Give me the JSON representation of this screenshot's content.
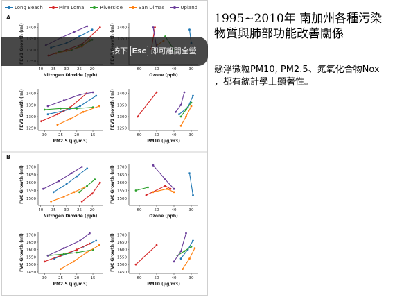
{
  "slide": {
    "title": "1995~2010年 南加州各種污染物質與肺部功能改善關係",
    "body": "懸浮微粒PM10, PM2.5、氮氧化合物Nox ，都有統計學上顯著性。"
  },
  "overlay": {
    "text_before": "按下",
    "key": "Esc",
    "text_after": "即可離開全螢"
  },
  "legend": [
    {
      "name": "Long Beach",
      "color": "#1f77b4"
    },
    {
      "name": "Mira Loma",
      "color": "#d62728"
    },
    {
      "name": "Riverside",
      "color": "#2ca02c"
    },
    {
      "name": "San Dimas",
      "color": "#ff7f0e"
    },
    {
      "name": "Upland",
      "color": "#6a3d9a"
    }
  ],
  "sections": [
    {
      "label": "A",
      "ylabel_prefix": "FEV",
      "ylabel_suffix": " Growth (ml)",
      "yticks": [
        "1400",
        "1350",
        "1300",
        "1250"
      ]
    },
    {
      "label": "B",
      "ylabel_prefix": "FVC",
      "ylabel_suffix": " Growth (ml)",
      "yticks": [
        "1700",
        "1650",
        "1600",
        "1550",
        "1500",
        "1450"
      ]
    }
  ],
  "chart_data": [
    {
      "type": "scatter",
      "panel": "A-NO2",
      "xlabel": "Nitrogen Dioxide (ppb)",
      "ylabel": "FEV1 Growth (ml)",
      "xticks": [
        "40",
        "35",
        "30",
        "25",
        "20"
      ],
      "yticks": [
        "1400",
        "1350",
        "1300",
        "1250"
      ],
      "xlim": [
        41,
        16
      ],
      "ylim": [
        1235,
        1420
      ],
      "series": [
        {
          "name": "Long Beach",
          "points": [
            [
              36,
              1310
            ],
            [
              30,
              1330
            ],
            [
              25,
              1360
            ],
            [
              20,
              1390
            ]
          ]
        },
        {
          "name": "Mira Loma",
          "points": [
            [
              37,
              1275
            ],
            [
              30,
              1300
            ],
            [
              24,
              1325
            ],
            [
              17,
              1400
            ]
          ]
        },
        {
          "name": "Riverside",
          "points": [
            [
              33,
              1290
            ],
            [
              28,
              1300
            ],
            [
              24,
              1320
            ],
            [
              20,
              1345
            ]
          ]
        },
        {
          "name": "San Dimas",
          "points": [
            [
              34,
              1285
            ],
            [
              30,
              1295
            ],
            [
              24,
              1315
            ],
            [
              21,
              1345
            ]
          ]
        },
        {
          "name": "Upland",
          "points": [
            [
              38,
              1320
            ],
            [
              32,
              1355
            ],
            [
              27,
              1380
            ],
            [
              22,
              1405
            ]
          ]
        }
      ]
    },
    {
      "type": "scatter",
      "panel": "A-O3",
      "xlabel": "Ozone (ppb)",
      "ylabel": "FEV1 Growth (ml)",
      "xticks": [
        "60",
        "50",
        "40",
        "30"
      ],
      "yticks": [
        "1400",
        "1350"
      ],
      "xlim": [
        66,
        26
      ],
      "ylim": [
        1235,
        1420
      ],
      "series": [
        {
          "name": "Long Beach",
          "points": [
            [
              31,
              1390
            ],
            [
              30,
              1330
            ]
          ]
        },
        {
          "name": "Mira Loma",
          "points": [
            [
              53,
              1305
            ],
            [
              51,
              1400
            ]
          ]
        },
        {
          "name": "Riverside",
          "points": [
            [
              45,
              1360
            ],
            [
              40,
              1300
            ]
          ]
        },
        {
          "name": "San Dimas",
          "points": [
            [
              50,
              1320
            ],
            [
              46,
              1340
            ]
          ]
        },
        {
          "name": "Upland",
          "points": [
            [
              52,
              1400
            ],
            [
              50,
              1310
            ]
          ]
        }
      ]
    },
    {
      "type": "scatter",
      "panel": "A-PM2.5",
      "xlabel": "PM2.5 (µg/m3)",
      "ylabel": "FEV1 Growth (ml)",
      "xticks": [
        "30",
        "25",
        "20",
        "15"
      ],
      "yticks": [
        "1400",
        "1350",
        "1300",
        "1250"
      ],
      "xlim": [
        32,
        12
      ],
      "ylim": [
        1240,
        1420
      ],
      "series": [
        {
          "name": "Long Beach",
          "points": [
            [
              29,
              1310
            ],
            [
              24,
              1325
            ],
            [
              19,
              1345
            ],
            [
              14,
              1390
            ]
          ]
        },
        {
          "name": "Mira Loma",
          "points": [
            [
              31,
              1280
            ],
            [
              26,
              1310
            ],
            [
              22,
              1340
            ],
            [
              17,
              1400
            ]
          ]
        },
        {
          "name": "Riverside",
          "points": [
            [
              30,
              1330
            ],
            [
              25,
              1335
            ],
            [
              20,
              1335
            ],
            [
              15,
              1340
            ]
          ]
        },
        {
          "name": "San Dimas",
          "points": [
            [
              26,
              1265
            ],
            [
              22,
              1290
            ],
            [
              18,
              1320
            ],
            [
              13,
              1345
            ]
          ]
        },
        {
          "name": "Upland",
          "points": [
            [
              29,
              1345
            ],
            [
              24,
              1370
            ],
            [
              19,
              1395
            ],
            [
              15,
              1405
            ]
          ]
        }
      ]
    },
    {
      "type": "scatter",
      "panel": "A-PM10",
      "xlabel": "PM10 (µg/m3)",
      "ylabel": "FEV1 Growth (ml)",
      "xticks": [
        "60",
        "50",
        "40",
        "30"
      ],
      "yticks": [
        "1400",
        "1350",
        "1300",
        "1250"
      ],
      "xlim": [
        66,
        26
      ],
      "ylim": [
        1240,
        1420
      ],
      "series": [
        {
          "name": "Long Beach",
          "points": [
            [
              37,
              1310
            ],
            [
              32,
              1340
            ],
            [
              29,
              1390
            ]
          ]
        },
        {
          "name": "Mira Loma",
          "points": [
            [
              61,
              1300
            ],
            [
              50,
              1405
            ]
          ]
        },
        {
          "name": "Riverside",
          "points": [
            [
              36,
              1300
            ],
            [
              33,
              1330
            ],
            [
              30,
              1360
            ]
          ]
        },
        {
          "name": "San Dimas",
          "points": [
            [
              36,
              1260
            ],
            [
              33,
              1300
            ],
            [
              30,
              1345
            ]
          ]
        },
        {
          "name": "Upland",
          "points": [
            [
              39,
              1320
            ],
            [
              36,
              1350
            ],
            [
              34,
              1405
            ]
          ]
        }
      ]
    },
    {
      "type": "scatter",
      "panel": "B-NO2",
      "xlabel": "Nitrogen Dioxide (ppb)",
      "ylabel": "FVC Growth (ml)",
      "xticks": [
        "40",
        "35",
        "30",
        "25",
        "20"
      ],
      "yticks": [
        "1700",
        "1650",
        "1600",
        "1550",
        "1500",
        "1450"
      ],
      "xlim": [
        41,
        16
      ],
      "ylim": [
        1455,
        1720
      ],
      "series": [
        {
          "name": "Long Beach",
          "points": [
            [
              35,
              1540
            ],
            [
              30,
              1590
            ],
            [
              26,
              1640
            ],
            [
              22,
              1690
            ]
          ]
        },
        {
          "name": "Mira Loma",
          "points": [
            [
              24,
              1480
            ],
            [
              20,
              1530
            ],
            [
              17,
              1600
            ]
          ]
        },
        {
          "name": "Riverside",
          "points": [
            [
              25,
              1540
            ],
            [
              22,
              1580
            ],
            [
              19,
              1620
            ]
          ]
        },
        {
          "name": "San Dimas",
          "points": [
            [
              36,
              1480
            ],
            [
              31,
              1510
            ],
            [
              27,
              1540
            ],
            [
              23,
              1570
            ]
          ]
        },
        {
          "name": "Upland",
          "points": [
            [
              39,
              1560
            ],
            [
              33,
              1610
            ],
            [
              28,
              1660
            ],
            [
              24,
              1700
            ]
          ]
        }
      ]
    },
    {
      "type": "scatter",
      "panel": "B-O3",
      "xlabel": "Ozone (ppb)",
      "ylabel": "FVC Growth (ml)",
      "xticks": [
        "60",
        "50",
        "40",
        "30"
      ],
      "yticks": [
        "1700",
        "1650",
        "1600",
        "1550",
        "1500"
      ],
      "xlim": [
        66,
        26
      ],
      "ylim": [
        1455,
        1720
      ],
      "series": [
        {
          "name": "Long Beach",
          "points": [
            [
              31,
              1660
            ],
            [
              29,
              1520
            ]
          ]
        },
        {
          "name": "Mira Loma",
          "points": [
            [
              56,
              1520
            ],
            [
              45,
              1580
            ],
            [
              42,
              1560
            ]
          ]
        },
        {
          "name": "Riverside",
          "points": [
            [
              62,
              1550
            ],
            [
              55,
              1570
            ]
          ]
        },
        {
          "name": "San Dimas",
          "points": [
            [
              52,
              1540
            ],
            [
              44,
              1560
            ],
            [
              40,
              1540
            ]
          ]
        },
        {
          "name": "Upland",
          "points": [
            [
              52,
              1710
            ],
            [
              45,
              1620
            ],
            [
              40,
              1560
            ]
          ]
        }
      ]
    },
    {
      "type": "scatter",
      "panel": "B-PM2.5",
      "xlabel": "PM2.5 (µg/m3)",
      "ylabel": "FVC Growth (ml)",
      "xticks": [
        "30",
        "25",
        "20",
        "15"
      ],
      "yticks": [
        "1700",
        "1650",
        "1600",
        "1550",
        "1500",
        "1450"
      ],
      "xlim": [
        32,
        12
      ],
      "ylim": [
        1440,
        1720
      ],
      "series": [
        {
          "name": "Long Beach",
          "points": [
            [
              27,
              1540
            ],
            [
              22,
              1580
            ],
            [
              18,
              1620
            ],
            [
              14,
              1660
            ]
          ]
        },
        {
          "name": "Mira Loma",
          "points": [
            [
              30,
              1520
            ],
            [
              25,
              1560
            ],
            [
              20,
              1600
            ],
            [
              16,
              1640
            ]
          ]
        },
        {
          "name": "Riverside",
          "points": [
            [
              29,
              1560
            ],
            [
              24,
              1570
            ],
            [
              20,
              1580
            ],
            [
              15,
              1600
            ]
          ]
        },
        {
          "name": "San Dimas",
          "points": [
            [
              25,
              1470
            ],
            [
              21,
              1520
            ],
            [
              17,
              1580
            ],
            [
              13,
              1630
            ]
          ]
        },
        {
          "name": "Upland",
          "points": [
            [
              29,
              1560
            ],
            [
              24,
              1610
            ],
            [
              19,
              1660
            ],
            [
              16,
              1710
            ]
          ]
        }
      ]
    },
    {
      "type": "scatter",
      "panel": "B-PM10",
      "xlabel": "PM10 (µg/m3)",
      "ylabel": "FVC Growth (ml)",
      "xticks": [
        "60",
        "50",
        "40",
        "30"
      ],
      "yticks": [
        "1700",
        "1650",
        "1600",
        "1550",
        "1500",
        "1450"
      ],
      "xlim": [
        66,
        26
      ],
      "ylim": [
        1440,
        1720
      ],
      "series": [
        {
          "name": "Long Beach",
          "points": [
            [
              36,
              1540
            ],
            [
              32,
              1600
            ],
            [
              29,
              1660
            ]
          ]
        },
        {
          "name": "Mira Loma",
          "points": [
            [
              62,
              1500
            ],
            [
              50,
              1630
            ]
          ]
        },
        {
          "name": "Riverside",
          "points": [
            [
              38,
              1560
            ],
            [
              34,
              1590
            ],
            [
              30,
              1620
            ]
          ]
        },
        {
          "name": "San Dimas",
          "points": [
            [
              35,
              1470
            ],
            [
              31,
              1540
            ],
            [
              28,
              1610
            ]
          ]
        },
        {
          "name": "Upland",
          "points": [
            [
              40,
              1520
            ],
            [
              36,
              1590
            ],
            [
              33,
              1710
            ]
          ]
        }
      ]
    }
  ]
}
